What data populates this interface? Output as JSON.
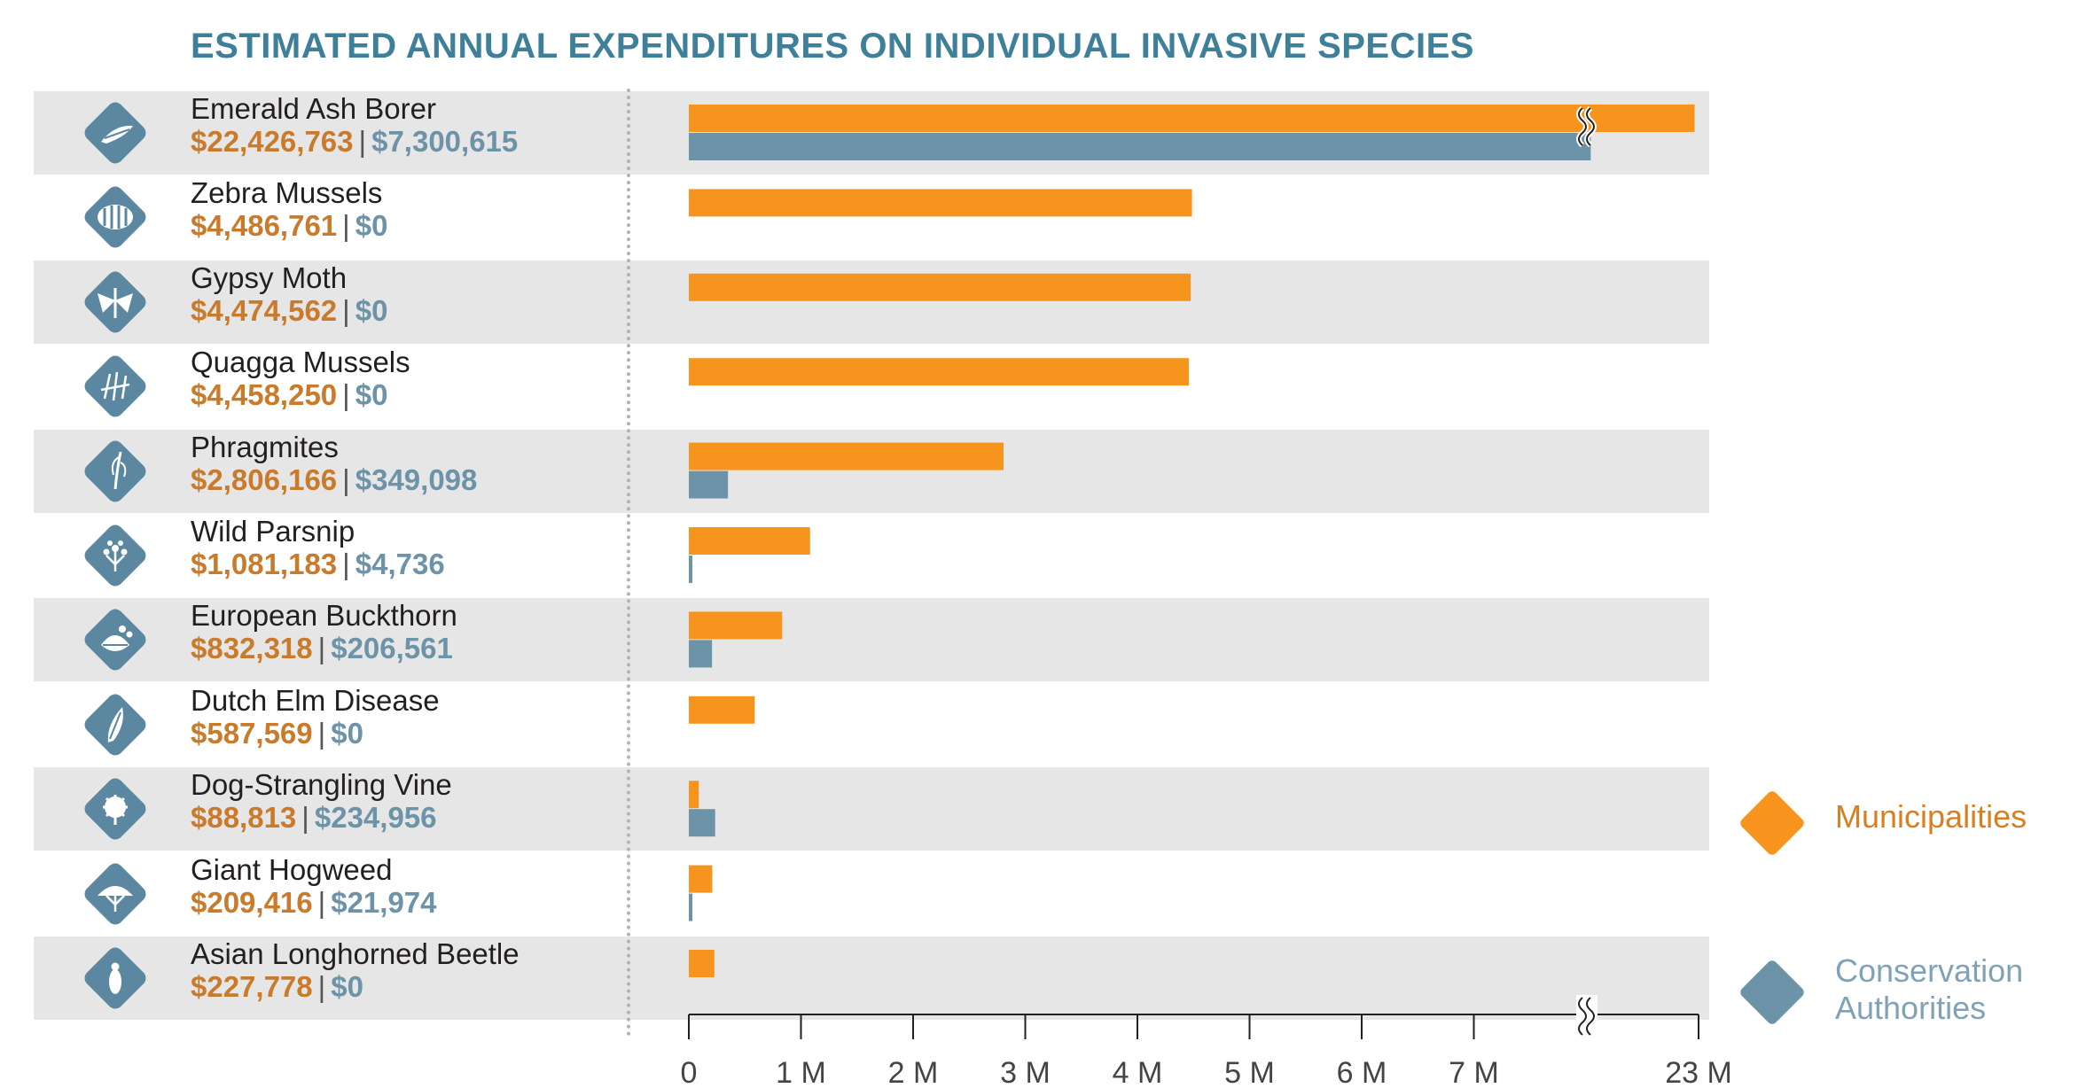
{
  "chart_data": {
    "type": "bar",
    "orientation": "horizontal",
    "title": "ESTIMATED ANNUAL EXPENDITURES ON INDIVIDUAL INVASIVE SPECIES",
    "series": [
      {
        "name": "Municipalities",
        "color": "#f7941d",
        "values": [
          22426763,
          4486761,
          4474562,
          4458250,
          2806166,
          1081183,
          832318,
          587569,
          88813,
          209416,
          227778
        ]
      },
      {
        "name": "Conservation Authorities",
        "color": "#6d93a8",
        "values": [
          7300615,
          0,
          0,
          0,
          349098,
          4736,
          206561,
          0,
          234956,
          21974,
          0
        ]
      }
    ],
    "categories": [
      "Emerald Ash Borer",
      "Zebra Mussels",
      "Gypsy Moth",
      "Quagga Mussels",
      "Phragmites",
      "Wild Parsnip",
      "European Buckthorn",
      "Dutch Elm Disease",
      "Dog-Strangling Vine",
      "Giant Hogweed",
      "Asian Longhorned Beetle"
    ],
    "value_labels": {
      "municipalities": [
        "$22,426,763",
        "$4,486,761",
        "$4,474,562",
        "$4,458,250",
        "$2,806,166",
        "$1,081,183",
        "$832,318",
        "$587,569",
        "$88,813",
        "$209,416",
        "$227,778"
      ],
      "conservation": [
        "$7,300,615",
        "$0",
        "$0",
        "$0",
        "$349,098",
        "$4,736",
        "$206,561",
        "$0",
        "$234,956",
        "$21,974",
        "$0"
      ]
    },
    "x_ticks": [
      "0",
      "1 M",
      "2 M",
      "3 M",
      "4 M",
      "5 M",
      "6 M",
      "7 M",
      "23 M"
    ],
    "x_tick_values": [
      0,
      1000000,
      2000000,
      3000000,
      4000000,
      5000000,
      6000000,
      7000000,
      23000000
    ],
    "axis_break": {
      "from": 7000000,
      "to": 23000000
    },
    "legend_position": "right",
    "grid": false
  },
  "icons": [
    "emerald-ash-borer-icon",
    "zebra-mussels-icon",
    "gypsy-moth-icon",
    "quagga-mussels-icon",
    "phragmites-icon",
    "wild-parsnip-icon",
    "european-buckthorn-icon",
    "dutch-elm-disease-icon",
    "dog-strangling-vine-icon",
    "giant-hogweed-icon",
    "asian-longhorned-beetle-icon"
  ],
  "colors": {
    "title": "#3e7f99",
    "municipalities_text": "#c97a2b",
    "conservation_text": "#6c93a8",
    "icon": "#5b87a0",
    "row_shade": "#e6e6e6"
  },
  "legend": {
    "municipalities": "Municipalities",
    "conservation_line1": "Conservation",
    "conservation_line2": "Authorities"
  },
  "separator": "|"
}
